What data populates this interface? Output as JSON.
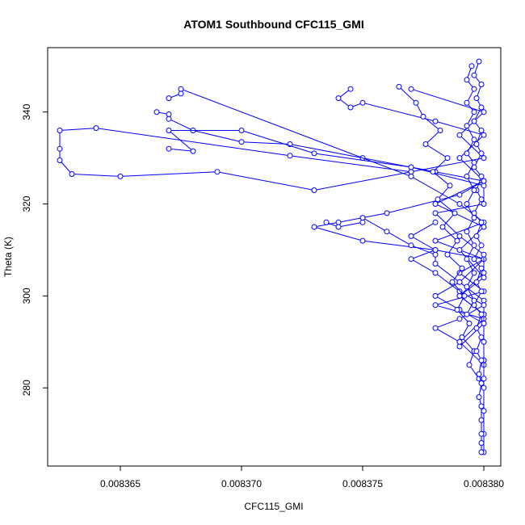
{
  "chart_data": {
    "type": "scatter",
    "title": "ATOM1 Southbound CFC115_GMI",
    "xlabel": "CFC115_GMI",
    "ylabel": "Theta (K)",
    "xlim": [
      0.008362,
      0.0083807
    ],
    "ylim": [
      263,
      354
    ],
    "xticks": [
      0.008365,
      0.00837,
      0.008375,
      0.00838
    ],
    "xtick_labels": [
      "0.008365",
      "0.008370",
      "0.008375",
      "0.008380"
    ],
    "yticks": [
      280,
      300,
      320,
      340
    ],
    "ytick_labels": [
      "280",
      "300",
      "320",
      "340"
    ],
    "grid": false,
    "legend": "none",
    "color": "#0000FF",
    "marker": "open-circle",
    "series": [
      {
        "points": [
          [
            0.008377,
            345
          ],
          [
            0.00838,
            340
          ],
          [
            0.008379,
            335
          ],
          [
            0.00838,
            330
          ],
          [
            0.008377,
            327
          ],
          [
            0.008373,
            323
          ],
          [
            0.008369,
            327
          ],
          [
            0.008365,
            326
          ],
          [
            0.008363,
            326.5
          ],
          [
            0.0083625,
            329.5
          ],
          [
            0.0083625,
            332
          ],
          [
            0.0083625,
            336
          ],
          [
            0.008364,
            336.5
          ],
          [
            0.008372,
            330.5
          ],
          [
            0.008377,
            327
          ]
        ]
      },
      {
        "points": [
          [
            0.0083665,
            340
          ],
          [
            0.008367,
            339.5
          ],
          [
            0.008367,
            338.5
          ],
          [
            0.008368,
            336
          ],
          [
            0.00837,
            333.5
          ],
          [
            0.008372,
            333
          ],
          [
            0.008375,
            330
          ],
          [
            0.008378,
            327
          ],
          [
            0.00838,
            325
          ],
          [
            0.008379,
            322
          ],
          [
            0.008376,
            318
          ],
          [
            0.008374,
            316
          ],
          [
            0.008373,
            315
          ],
          [
            0.008375,
            312
          ],
          [
            0.008378,
            310
          ],
          [
            0.00838,
            308
          ],
          [
            0.008379,
            305
          ],
          [
            0.00838,
            301
          ],
          [
            0.008378,
            298
          ],
          [
            0.00838,
            295
          ],
          [
            0.008379,
            290
          ],
          [
            0.00838,
            285
          ],
          [
            0.00838,
            280
          ],
          [
            0.00838,
            275
          ],
          [
            0.00838,
            270
          ],
          [
            0.00838,
            266
          ]
        ]
      },
      {
        "points": [
          [
            0.008367,
            343
          ],
          [
            0.0083675,
            344
          ],
          [
            0.0083675,
            345
          ],
          [
            0.008377,
            326
          ],
          [
            0.008379,
            320
          ],
          [
            0.00838,
            316
          ],
          [
            0.008378,
            312
          ],
          [
            0.00838,
            308
          ],
          [
            0.008379,
            303
          ],
          [
            0.00838,
            299
          ],
          [
            0.00838,
            294
          ],
          [
            0.008379,
            289
          ]
        ]
      },
      {
        "points": [
          [
            0.008367,
            332
          ],
          [
            0.008368,
            331.5
          ],
          [
            0.008367,
            336
          ],
          [
            0.00837,
            336
          ],
          [
            0.008373,
            331
          ],
          [
            0.008377,
            328
          ],
          [
            0.00838,
            324
          ],
          [
            0.00838,
            320
          ],
          [
            0.008378,
            318
          ],
          [
            0.008379,
            313
          ],
          [
            0.00838,
            309
          ],
          [
            0.00838,
            305
          ],
          [
            0.008379,
            300
          ],
          [
            0.00838,
            296
          ]
        ]
      },
      {
        "points": [
          [
            0.0083745,
            345
          ],
          [
            0.008374,
            343
          ],
          [
            0.0083745,
            341
          ],
          [
            0.008375,
            342
          ],
          [
            0.008378,
            338
          ],
          [
            0.00838,
            335
          ],
          [
            0.008379,
            330
          ],
          [
            0.00838,
            325
          ],
          [
            0.008378,
            320
          ],
          [
            0.00838,
            315
          ],
          [
            0.008379,
            310
          ],
          [
            0.00838,
            304
          ],
          [
            0.008379,
            300
          ],
          [
            0.00838,
            296
          ],
          [
            0.00838,
            290
          ],
          [
            0.00838,
            286
          ]
        ]
      },
      {
        "points": [
          [
            0.0083735,
            316
          ],
          [
            0.008374,
            315
          ],
          [
            0.008375,
            316
          ],
          [
            0.008375,
            317
          ],
          [
            0.008376,
            314
          ],
          [
            0.008377,
            311
          ],
          [
            0.008378,
            309
          ],
          [
            0.008378,
            307
          ],
          [
            0.008379,
            303
          ],
          [
            0.008378,
            300
          ],
          [
            0.008379,
            297
          ],
          [
            0.00838,
            294
          ],
          [
            0.00838,
            290
          ],
          [
            0.00838,
            286
          ],
          [
            0.00838,
            282
          ]
        ]
      },
      {
        "points": [
          [
            0.008378,
            316
          ],
          [
            0.008377,
            313
          ],
          [
            0.008378,
            310
          ],
          [
            0.008377,
            308
          ],
          [
            0.008378,
            305
          ],
          [
            0.008379,
            301
          ],
          [
            0.00838,
            298
          ],
          [
            0.008379,
            295
          ],
          [
            0.008378,
            293
          ],
          [
            0.008379,
            290
          ]
        ]
      },
      {
        "points": [
          [
            0.0083765,
            345.5
          ],
          [
            0.0083772,
            342
          ],
          [
            0.0083775,
            339
          ],
          [
            0.0083782,
            336
          ],
          [
            0.0083776,
            333
          ],
          [
            0.0083785,
            330
          ],
          [
            0.0083779,
            327
          ],
          [
            0.0083786,
            324
          ],
          [
            0.0083781,
            321
          ],
          [
            0.0083788,
            318
          ],
          [
            0.0083783,
            315
          ],
          [
            0.0083789,
            312
          ],
          [
            0.0083785,
            309
          ],
          [
            0.0083791,
            306
          ],
          [
            0.0083787,
            303
          ],
          [
            0.0083792,
            300
          ],
          [
            0.0083789,
            297
          ],
          [
            0.0083794,
            294
          ],
          [
            0.0083791,
            291
          ],
          [
            0.0083796,
            288
          ],
          [
            0.0083794,
            285
          ],
          [
            0.0083798,
            282
          ]
        ]
      },
      {
        "points": [
          [
            0.0083798,
            351
          ],
          [
            0.0083796,
            348
          ],
          [
            0.0083799,
            346
          ],
          [
            0.0083797,
            343
          ],
          [
            0.0083799,
            341
          ],
          [
            0.0083796,
            338
          ],
          [
            0.0083799,
            336
          ],
          [
            0.0083797,
            333
          ],
          [
            0.0083799,
            331
          ],
          [
            0.0083796,
            328
          ],
          [
            0.0083799,
            326
          ],
          [
            0.0083797,
            323
          ],
          [
            0.0083799,
            321
          ],
          [
            0.0083796,
            318
          ],
          [
            0.0083799,
            316
          ],
          [
            0.0083797,
            313
          ],
          [
            0.0083799,
            311
          ],
          [
            0.0083796,
            308
          ],
          [
            0.0083799,
            306
          ],
          [
            0.0083797,
            303
          ],
          [
            0.0083799,
            301
          ],
          [
            0.0083796,
            298
          ],
          [
            0.0083799,
            296
          ],
          [
            0.0083797,
            293
          ],
          [
            0.0083799,
            291
          ],
          [
            0.0083797,
            288
          ],
          [
            0.0083799,
            286
          ],
          [
            0.0083798,
            283
          ],
          [
            0.0083799,
            281
          ],
          [
            0.0083798,
            278
          ],
          [
            0.0083799,
            276
          ],
          [
            0.0083799,
            273
          ],
          [
            0.0083799,
            270
          ],
          [
            0.0083799,
            268
          ],
          [
            0.0083799,
            266
          ]
        ]
      },
      {
        "points": [
          [
            0.0083795,
            350
          ],
          [
            0.0083793,
            347
          ],
          [
            0.0083796,
            345
          ],
          [
            0.0083793,
            342
          ],
          [
            0.0083796,
            340
          ],
          [
            0.0083793,
            337
          ],
          [
            0.0083796,
            334
          ],
          [
            0.0083793,
            331
          ],
          [
            0.0083796,
            329
          ],
          [
            0.0083793,
            326
          ],
          [
            0.0083796,
            323
          ],
          [
            0.0083793,
            320
          ],
          [
            0.0083796,
            317
          ],
          [
            0.0083793,
            314
          ],
          [
            0.0083796,
            311
          ],
          [
            0.0083793,
            308
          ],
          [
            0.0083796,
            305
          ],
          [
            0.0083793,
            302
          ],
          [
            0.0083796,
            299
          ],
          [
            0.0083793,
            296
          ]
        ]
      }
    ]
  }
}
